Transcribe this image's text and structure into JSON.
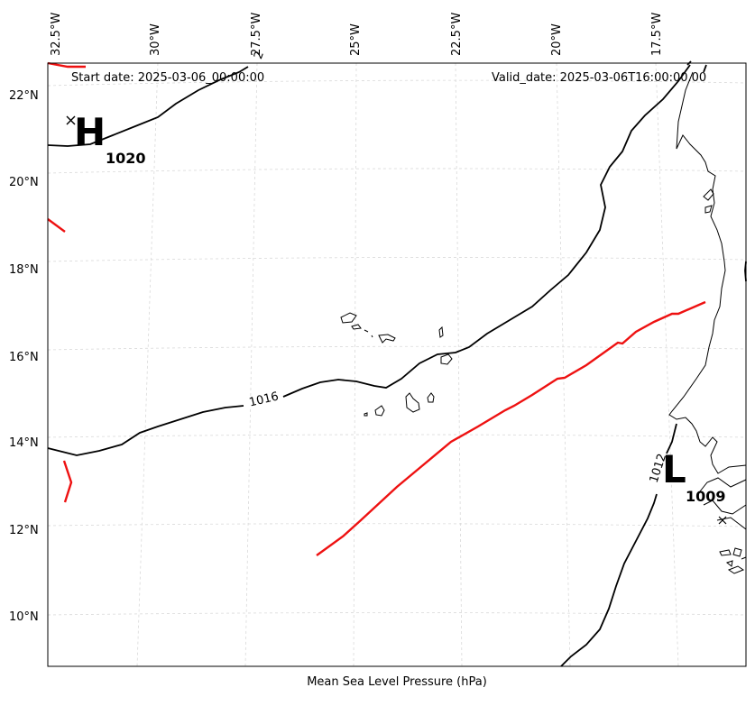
{
  "map": {
    "start_date_label": "Start date: 2025-03-06_00:00:00",
    "valid_date_label": "Valid_date: 2025-03-06T16:00:00.00",
    "caption": "Mean Sea Level Pressure (hPa)",
    "lon_labels": [
      "32.5°W",
      "30°W",
      "27.5°W",
      "25°W",
      "22.5°W",
      "20°W",
      "17.5°W"
    ],
    "lat_labels": [
      "22°N",
      "20°N",
      "18°N",
      "16°N",
      "14°N",
      "12°N",
      "10°N"
    ],
    "isobar_labels": [
      "1016",
      "1012",
      "2"
    ],
    "high": {
      "letter": "H",
      "value": "1020"
    },
    "low": {
      "letter": "L",
      "value": "1009"
    },
    "colors": {
      "isobar": "#000000",
      "front": "#ee1111",
      "grid": "#d9d9d9",
      "coast": "#000000"
    }
  }
}
